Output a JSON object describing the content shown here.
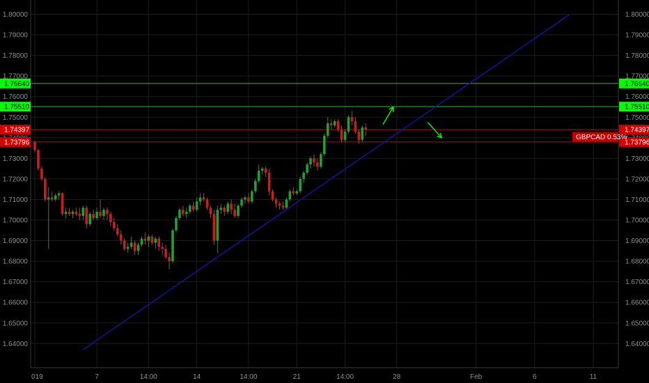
{
  "colors": {
    "background": "#000000",
    "grid": "#1c1c1c",
    "axis_text": "#8f8f8f",
    "up_candle": "#1fa02f",
    "down_candle": "#c81e1e",
    "green_level": "#00ff00",
    "red_level": "#ff1a1a",
    "trendline": "#1414b4",
    "arrow": "#00ff00"
  },
  "chart_data": {
    "type": "candlestick",
    "symbol_tag": "GBPCAD 0.53%",
    "y_ticks": [
      "1.80000",
      "1.79000",
      "1.78000",
      "1.77000",
      "1.76000",
      "1.75000",
      "1.74000",
      "1.73000",
      "1.72000",
      "1.71000",
      "1.70000",
      "1.69000",
      "1.68000",
      "1.67000",
      "1.66000",
      "1.65000",
      "1.64000"
    ],
    "y_tick_values": [
      1.8,
      1.79,
      1.78,
      1.77,
      1.76,
      1.75,
      1.74,
      1.73,
      1.72,
      1.71,
      1.7,
      1.69,
      1.68,
      1.67,
      1.66,
      1.65,
      1.64
    ],
    "ylim": [
      1.6335,
      1.81
    ],
    "x_ticks": [
      {
        "label": "019",
        "bar": 0
      },
      {
        "label": "7",
        "bar": 18
      },
      {
        "label": "14:00",
        "bar": 33
      },
      {
        "label": "14",
        "bar": 47
      },
      {
        "label": "14:00",
        "bar": 62
      },
      {
        "label": "21",
        "bar": 76
      },
      {
        "label": "14:00",
        "bar": 90
      },
      {
        "label": "28",
        "bar": 105
      },
      {
        "label": "Feb",
        "bar": 128
      },
      {
        "label": "6",
        "bar": 145
      },
      {
        "label": "11",
        "bar": 162
      }
    ],
    "levels": [
      {
        "label": "1.76640",
        "value": 1.7664,
        "color": "green"
      },
      {
        "label": "1.75510",
        "value": 1.7551,
        "color": "green"
      },
      {
        "label": "1.74397",
        "value": 1.74397,
        "color": "red"
      },
      {
        "label": "1.73796",
        "value": 1.73796,
        "color": "red"
      }
    ],
    "trendline": {
      "from": {
        "bar": 14,
        "value": 1.637
      },
      "to": {
        "bar": 155,
        "value": 1.7998
      }
    },
    "arrows": [
      {
        "from": {
          "bar": 101,
          "value": 1.7465
        },
        "to": {
          "bar": 104,
          "value": 1.755
        },
        "direction": "up"
      },
      {
        "from": {
          "bar": 114,
          "value": 1.7475
        },
        "to": {
          "bar": 118,
          "value": 1.74
        },
        "direction": "down"
      }
    ],
    "ohlc": [
      [
        1.738,
        1.7385,
        1.733,
        1.734
      ],
      [
        1.734,
        1.7345,
        1.724,
        1.725
      ],
      [
        1.725,
        1.726,
        1.719,
        1.72
      ],
      [
        1.72,
        1.721,
        1.709,
        1.71
      ],
      [
        1.71,
        1.716,
        1.686,
        1.711
      ],
      [
        1.711,
        1.714,
        1.709,
        1.71
      ],
      [
        1.71,
        1.713,
        1.709,
        1.712
      ],
      [
        1.712,
        1.714,
        1.71,
        1.713
      ],
      [
        1.713,
        1.7135,
        1.702,
        1.703
      ],
      [
        1.703,
        1.706,
        1.701,
        1.704
      ],
      [
        1.704,
        1.706,
        1.702,
        1.703
      ],
      [
        1.703,
        1.705,
        1.701,
        1.704
      ],
      [
        1.704,
        1.706,
        1.702,
        1.703
      ],
      [
        1.703,
        1.706,
        1.7,
        1.702
      ],
      [
        1.702,
        1.707,
        1.7,
        1.706
      ],
      [
        1.706,
        1.707,
        1.696,
        1.698
      ],
      [
        1.698,
        1.704,
        1.697,
        1.703
      ],
      [
        1.703,
        1.705,
        1.7,
        1.701
      ],
      [
        1.701,
        1.706,
        1.7,
        1.704
      ],
      [
        1.704,
        1.71,
        1.701,
        1.702
      ],
      [
        1.702,
        1.706,
        1.7,
        1.705
      ],
      [
        1.705,
        1.706,
        1.7,
        1.703
      ],
      [
        1.703,
        1.704,
        1.697,
        1.699
      ],
      [
        1.699,
        1.701,
        1.695,
        1.696
      ],
      [
        1.696,
        1.698,
        1.692,
        1.693
      ],
      [
        1.693,
        1.695,
        1.688,
        1.69
      ],
      [
        1.69,
        1.691,
        1.685,
        1.686
      ],
      [
        1.686,
        1.689,
        1.684,
        1.687
      ],
      [
        1.687,
        1.692,
        1.686,
        1.689
      ],
      [
        1.689,
        1.69,
        1.683,
        1.685
      ],
      [
        1.685,
        1.689,
        1.683,
        1.688
      ],
      [
        1.688,
        1.692,
        1.687,
        1.691
      ],
      [
        1.691,
        1.694,
        1.688,
        1.69
      ],
      [
        1.69,
        1.693,
        1.687,
        1.692
      ],
      [
        1.692,
        1.693,
        1.688,
        1.689
      ],
      [
        1.689,
        1.692,
        1.686,
        1.691
      ],
      [
        1.691,
        1.692,
        1.685,
        1.687
      ],
      [
        1.687,
        1.689,
        1.683,
        1.686
      ],
      [
        1.686,
        1.688,
        1.681,
        1.682
      ],
      [
        1.682,
        1.684,
        1.676,
        1.68
      ],
      [
        1.68,
        1.696,
        1.679,
        1.695
      ],
      [
        1.695,
        1.702,
        1.694,
        1.701
      ],
      [
        1.701,
        1.706,
        1.7,
        1.705
      ],
      [
        1.705,
        1.707,
        1.702,
        1.703
      ],
      [
        1.703,
        1.706,
        1.701,
        1.704
      ],
      [
        1.704,
        1.708,
        1.703,
        1.707
      ],
      [
        1.707,
        1.709,
        1.704,
        1.705
      ],
      [
        1.705,
        1.711,
        1.704,
        1.709
      ],
      [
        1.709,
        1.713,
        1.707,
        1.711
      ],
      [
        1.711,
        1.713,
        1.709,
        1.71
      ],
      [
        1.71,
        1.711,
        1.705,
        1.706
      ],
      [
        1.706,
        1.707,
        1.701,
        1.703
      ],
      [
        1.703,
        1.705,
        1.688,
        1.69
      ],
      [
        1.69,
        1.707,
        1.684,
        1.705
      ],
      [
        1.705,
        1.708,
        1.703,
        1.706
      ],
      [
        1.706,
        1.707,
        1.702,
        1.704
      ],
      [
        1.704,
        1.709,
        1.703,
        1.708
      ],
      [
        1.708,
        1.71,
        1.703,
        1.705
      ],
      [
        1.705,
        1.708,
        1.701,
        1.702
      ],
      [
        1.702,
        1.708,
        1.701,
        1.707
      ],
      [
        1.707,
        1.711,
        1.706,
        1.71
      ],
      [
        1.71,
        1.712,
        1.708,
        1.711
      ],
      [
        1.711,
        1.713,
        1.708,
        1.709
      ],
      [
        1.709,
        1.715,
        1.708,
        1.714
      ],
      [
        1.714,
        1.72,
        1.713,
        1.719
      ],
      [
        1.719,
        1.727,
        1.718,
        1.724
      ],
      [
        1.724,
        1.726,
        1.722,
        1.725
      ],
      [
        1.725,
        1.726,
        1.721,
        1.723
      ],
      [
        1.723,
        1.725,
        1.712,
        1.714
      ],
      [
        1.714,
        1.715,
        1.709,
        1.71
      ],
      [
        1.71,
        1.711,
        1.706,
        1.708
      ],
      [
        1.708,
        1.709,
        1.705,
        1.707
      ],
      [
        1.707,
        1.709,
        1.705,
        1.706
      ],
      [
        1.706,
        1.711,
        1.705,
        1.71
      ],
      [
        1.71,
        1.715,
        1.709,
        1.714
      ],
      [
        1.714,
        1.716,
        1.712,
        1.713
      ],
      [
        1.713,
        1.715,
        1.712,
        1.714
      ],
      [
        1.714,
        1.721,
        1.713,
        1.72
      ],
      [
        1.72,
        1.724,
        1.718,
        1.723
      ],
      [
        1.723,
        1.728,
        1.722,
        1.727
      ],
      [
        1.727,
        1.731,
        1.725,
        1.73
      ],
      [
        1.73,
        1.732,
        1.726,
        1.728
      ],
      [
        1.728,
        1.73,
        1.724,
        1.726
      ],
      [
        1.726,
        1.733,
        1.725,
        1.732
      ],
      [
        1.732,
        1.742,
        1.731,
        1.741
      ],
      [
        1.741,
        1.75,
        1.74,
        1.747
      ],
      [
        1.747,
        1.749,
        1.744,
        1.746
      ],
      [
        1.746,
        1.749,
        1.745,
        1.748
      ],
      [
        1.748,
        1.749,
        1.743,
        1.744
      ],
      [
        1.744,
        1.746,
        1.738,
        1.739
      ],
      [
        1.739,
        1.744,
        1.738,
        1.743
      ],
      [
        1.743,
        1.751,
        1.742,
        1.75
      ],
      [
        1.75,
        1.753,
        1.746,
        1.748
      ],
      [
        1.748,
        1.75,
        1.742,
        1.743
      ],
      [
        1.743,
        1.744,
        1.737,
        1.739
      ],
      [
        1.739,
        1.746,
        1.738,
        1.745
      ],
      [
        1.745,
        1.747,
        1.741,
        1.744
      ]
    ]
  }
}
